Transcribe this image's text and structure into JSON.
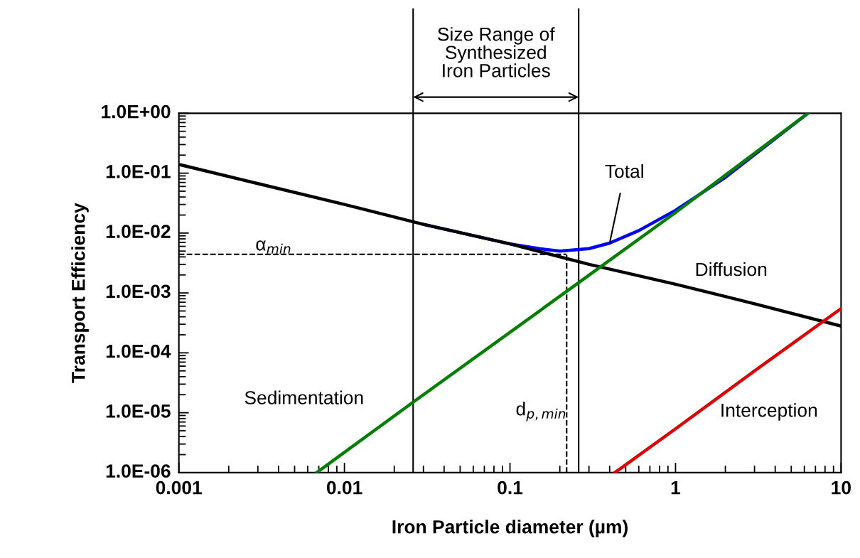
{
  "chart_data": {
    "type": "line",
    "xlabel": "Iron Particle diameter (µm)",
    "ylabel": "Transport Efficiency",
    "log": "xy",
    "grid": false,
    "legend": false,
    "marker": "none",
    "line_style": "solid",
    "xlim": [
      0.001,
      10
    ],
    "xticks": [
      0.001,
      0.01,
      0.1,
      1,
      10
    ],
    "ylim": [
      1e-06,
      1
    ],
    "yticks": [
      {
        "value": 1,
        "label": "1.0E+00"
      },
      {
        "value": 0.1,
        "label": "1.0E-01"
      },
      {
        "value": 0.01,
        "label": "1.0E-02"
      },
      {
        "value": 0.001,
        "label": "1.0E-03"
      },
      {
        "value": 0.0001,
        "label": "1.0E-04"
      },
      {
        "value": 1e-05,
        "label": "1.0E-05"
      },
      {
        "value": 1e-06,
        "label": "1.0E-06"
      }
    ],
    "series": [
      {
        "name": "Total",
        "color": "#0000ff",
        "x": [
          0.03,
          0.1,
          0.15,
          0.2,
          0.3,
          0.4,
          0.6,
          1,
          2,
          6.3
        ],
        "values": [
          0.014,
          0.0066,
          0.0055,
          0.005,
          0.0055,
          0.0068,
          0.011,
          0.024,
          0.085,
          1
        ]
      },
      {
        "name": "Diffusion",
        "color": "#000000",
        "x": [
          0.001,
          0.003,
          0.01,
          0.03,
          0.1,
          0.3,
          1,
          3,
          10
        ],
        "values": [
          0.14,
          0.067,
          0.03,
          0.014,
          0.0066,
          0.003,
          0.0014,
          0.00066,
          0.00028
        ]
      },
      {
        "name": "Sedimentation",
        "color": "#008000",
        "x": [
          0.0068,
          0.026,
          0.27,
          1,
          6.3
        ],
        "values": [
          1e-06,
          1.5e-05,
          0.0016,
          0.022,
          1
        ]
      },
      {
        "name": "Interception",
        "color": "#e00000",
        "x": [
          0.43,
          1,
          3,
          10
        ],
        "values": [
          1e-06,
          5.4e-06,
          5e-05,
          0.00055
        ]
      }
    ],
    "ref_lines": [
      {
        "axis": "x",
        "value": 0.026,
        "color": "#000000",
        "line_style": "solid"
      },
      {
        "axis": "x",
        "value": 0.26,
        "color": "#000000",
        "line_style": "solid"
      },
      {
        "axis": "y",
        "value": 0.0044,
        "label": "α$_{min}$",
        "color": "#000000",
        "line_style": "dashed"
      },
      {
        "axis": "x",
        "value": 0.22,
        "label": "d$_{p,min}$",
        "color": "#000000",
        "line_style": "dashed"
      }
    ],
    "annotations": [
      "Size Range of\nSynthesized\nIron Particles"
    ]
  }
}
